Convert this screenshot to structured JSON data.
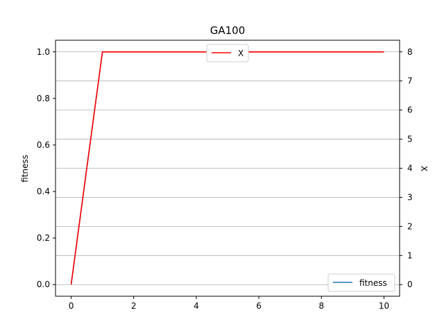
{
  "chart_data": {
    "type": "line",
    "title": "GA100",
    "xlabel": "",
    "ylabel": "fitness",
    "ylabel_right": "X",
    "xlim": [
      -0.5,
      10.5
    ],
    "ylim": [
      -0.05,
      1.05
    ],
    "ylim_right": [
      -0.4,
      8.4
    ],
    "xticks": [
      0,
      2,
      4,
      6,
      8,
      10
    ],
    "yticks": [
      0.0,
      0.2,
      0.4,
      0.6,
      0.8,
      1.0
    ],
    "yticks_right": [
      0,
      1,
      2,
      3,
      4,
      5,
      6,
      7,
      8
    ],
    "ytick_labels": [
      "0.0",
      "0.2",
      "0.4",
      "0.6",
      "0.8",
      "1.0"
    ],
    "ytick_labels_right": [
      "0",
      "1",
      "2",
      "3",
      "4",
      "5",
      "6",
      "7",
      "8"
    ],
    "grid": "right-axis horizontal",
    "series": [
      {
        "name": "fitness",
        "axis": "left",
        "color": "#1f77b4",
        "x": [
          0,
          1,
          2,
          3,
          4,
          5,
          6,
          7,
          8,
          9,
          10
        ],
        "values": [
          0.0,
          1.0,
          1.0,
          1.0,
          1.0,
          1.0,
          1.0,
          1.0,
          1.0,
          1.0,
          1.0
        ],
        "legend": "lower right"
      },
      {
        "name": "X",
        "axis": "right",
        "color": "#ff0000",
        "x": [
          0,
          1,
          2,
          3,
          4,
          5,
          6,
          7,
          8,
          9,
          10
        ],
        "values": [
          0,
          8,
          8,
          8,
          8,
          8,
          8,
          8,
          8,
          8,
          8
        ],
        "legend": "upper center"
      }
    ]
  }
}
